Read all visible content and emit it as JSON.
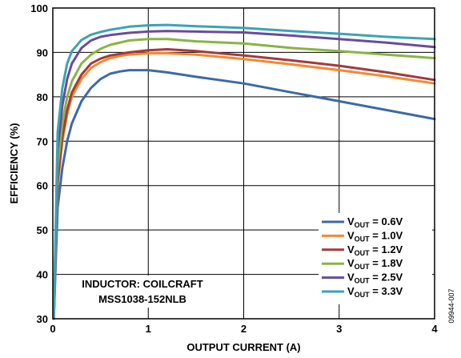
{
  "chart_data": {
    "type": "line",
    "xlabel": "OUTPUT CURRENT (A)",
    "ylabel": "EFFICIENCY (%)",
    "xlim": [
      0,
      4
    ],
    "ylim": [
      30,
      100
    ],
    "xticks": [
      "0",
      "1",
      "2",
      "3",
      "4"
    ],
    "yticks": [
      "30",
      "40",
      "50",
      "60",
      "70",
      "80",
      "90",
      "100"
    ],
    "grid": true,
    "legend_position": "bottom-right",
    "annotation": [
      "INDUCTOR: COILCRAFT",
      "MSS1038-152NLB"
    ],
    "figure_id": "09944-007",
    "series": [
      {
        "legend_main": "V",
        "legend_sub": "OUT",
        "legend_value": " = 0.6V",
        "color": "#3b6aa8",
        "points": [
          [
            0.01,
            30
          ],
          [
            0.05,
            55
          ],
          [
            0.1,
            64
          ],
          [
            0.15,
            70
          ],
          [
            0.2,
            74
          ],
          [
            0.3,
            79
          ],
          [
            0.4,
            82
          ],
          [
            0.5,
            84
          ],
          [
            0.6,
            85.2
          ],
          [
            0.7,
            85.7
          ],
          [
            0.8,
            86
          ],
          [
            0.9,
            86
          ],
          [
            1.0,
            86
          ],
          [
            1.2,
            85.5
          ],
          [
            1.5,
            84.5
          ],
          [
            2.0,
            83
          ],
          [
            2.5,
            81
          ],
          [
            3.0,
            79
          ],
          [
            3.5,
            77
          ],
          [
            4.0,
            75
          ]
        ]
      },
      {
        "legend_main": "V",
        "legend_sub": "OUT",
        "legend_value": " = 1.0V",
        "color": "#f08a33",
        "points": [
          [
            0.01,
            30
          ],
          [
            0.05,
            60
          ],
          [
            0.1,
            70
          ],
          [
            0.15,
            76
          ],
          [
            0.2,
            80
          ],
          [
            0.3,
            84
          ],
          [
            0.4,
            86.5
          ],
          [
            0.5,
            87.8
          ],
          [
            0.6,
            88.7
          ],
          [
            0.7,
            89.2
          ],
          [
            0.8,
            89.5
          ],
          [
            1.0,
            89.8
          ],
          [
            1.2,
            89.8
          ],
          [
            1.5,
            89.5
          ],
          [
            2.0,
            88.5
          ],
          [
            2.5,
            87.3
          ],
          [
            3.0,
            86
          ],
          [
            3.5,
            84.6
          ],
          [
            4.0,
            83
          ]
        ]
      },
      {
        "legend_main": "V",
        "legend_sub": "OUT",
        "legend_value": " = 1.2V",
        "color": "#a23b3a",
        "points": [
          [
            0.01,
            30
          ],
          [
            0.05,
            61
          ],
          [
            0.1,
            71
          ],
          [
            0.15,
            77
          ],
          [
            0.2,
            81
          ],
          [
            0.3,
            85
          ],
          [
            0.4,
            87.5
          ],
          [
            0.5,
            88.6
          ],
          [
            0.6,
            89.3
          ],
          [
            0.8,
            90
          ],
          [
            1.0,
            90.5
          ],
          [
            1.2,
            90.7
          ],
          [
            1.5,
            90.3
          ],
          [
            2.0,
            89.3
          ],
          [
            2.5,
            88.2
          ],
          [
            3.0,
            87
          ],
          [
            3.5,
            85.5
          ],
          [
            4.0,
            83.8
          ]
        ]
      },
      {
        "legend_main": "V",
        "legend_sub": "OUT",
        "legend_value": " = 1.8V",
        "color": "#8ab346",
        "points": [
          [
            0.01,
            30
          ],
          [
            0.05,
            64
          ],
          [
            0.1,
            74
          ],
          [
            0.15,
            80
          ],
          [
            0.2,
            83.5
          ],
          [
            0.3,
            87.5
          ],
          [
            0.4,
            89.5
          ],
          [
            0.5,
            90.8
          ],
          [
            0.6,
            91.7
          ],
          [
            0.8,
            92.7
          ],
          [
            1.0,
            93
          ],
          [
            1.2,
            93
          ],
          [
            1.5,
            92.5
          ],
          [
            2.0,
            92
          ],
          [
            2.5,
            91
          ],
          [
            3.0,
            90.3
          ],
          [
            3.5,
            89.5
          ],
          [
            4.0,
            88.7
          ]
        ]
      },
      {
        "legend_main": "V",
        "legend_sub": "OUT",
        "legend_value": " = 2.5V",
        "color": "#6a4b9a",
        "points": [
          [
            0.01,
            30
          ],
          [
            0.05,
            68
          ],
          [
            0.1,
            78
          ],
          [
            0.15,
            84
          ],
          [
            0.2,
            87.5
          ],
          [
            0.3,
            91
          ],
          [
            0.4,
            92.7
          ],
          [
            0.5,
            93.5
          ],
          [
            0.6,
            93.9
          ],
          [
            0.8,
            94.4
          ],
          [
            1.0,
            94.7
          ],
          [
            1.2,
            94.8
          ],
          [
            1.5,
            94.7
          ],
          [
            2.0,
            94.5
          ],
          [
            2.5,
            93.8
          ],
          [
            3.0,
            93
          ],
          [
            3.5,
            92.2
          ],
          [
            4.0,
            91.2
          ]
        ]
      },
      {
        "legend_main": "V",
        "legend_sub": "OUT",
        "legend_value": " = 3.3V",
        "color": "#3aa3b8",
        "points": [
          [
            0.01,
            30
          ],
          [
            0.05,
            72
          ],
          [
            0.1,
            82
          ],
          [
            0.15,
            87.5
          ],
          [
            0.2,
            90.3
          ],
          [
            0.3,
            92.8
          ],
          [
            0.4,
            94
          ],
          [
            0.5,
            94.6
          ],
          [
            0.6,
            95.1
          ],
          [
            0.8,
            95.8
          ],
          [
            1.0,
            96.1
          ],
          [
            1.2,
            96.2
          ],
          [
            1.5,
            95.9
          ],
          [
            2.0,
            95.5
          ],
          [
            2.5,
            94.8
          ],
          [
            3.0,
            94.2
          ],
          [
            3.5,
            93.5
          ],
          [
            4.0,
            93
          ]
        ]
      }
    ]
  }
}
